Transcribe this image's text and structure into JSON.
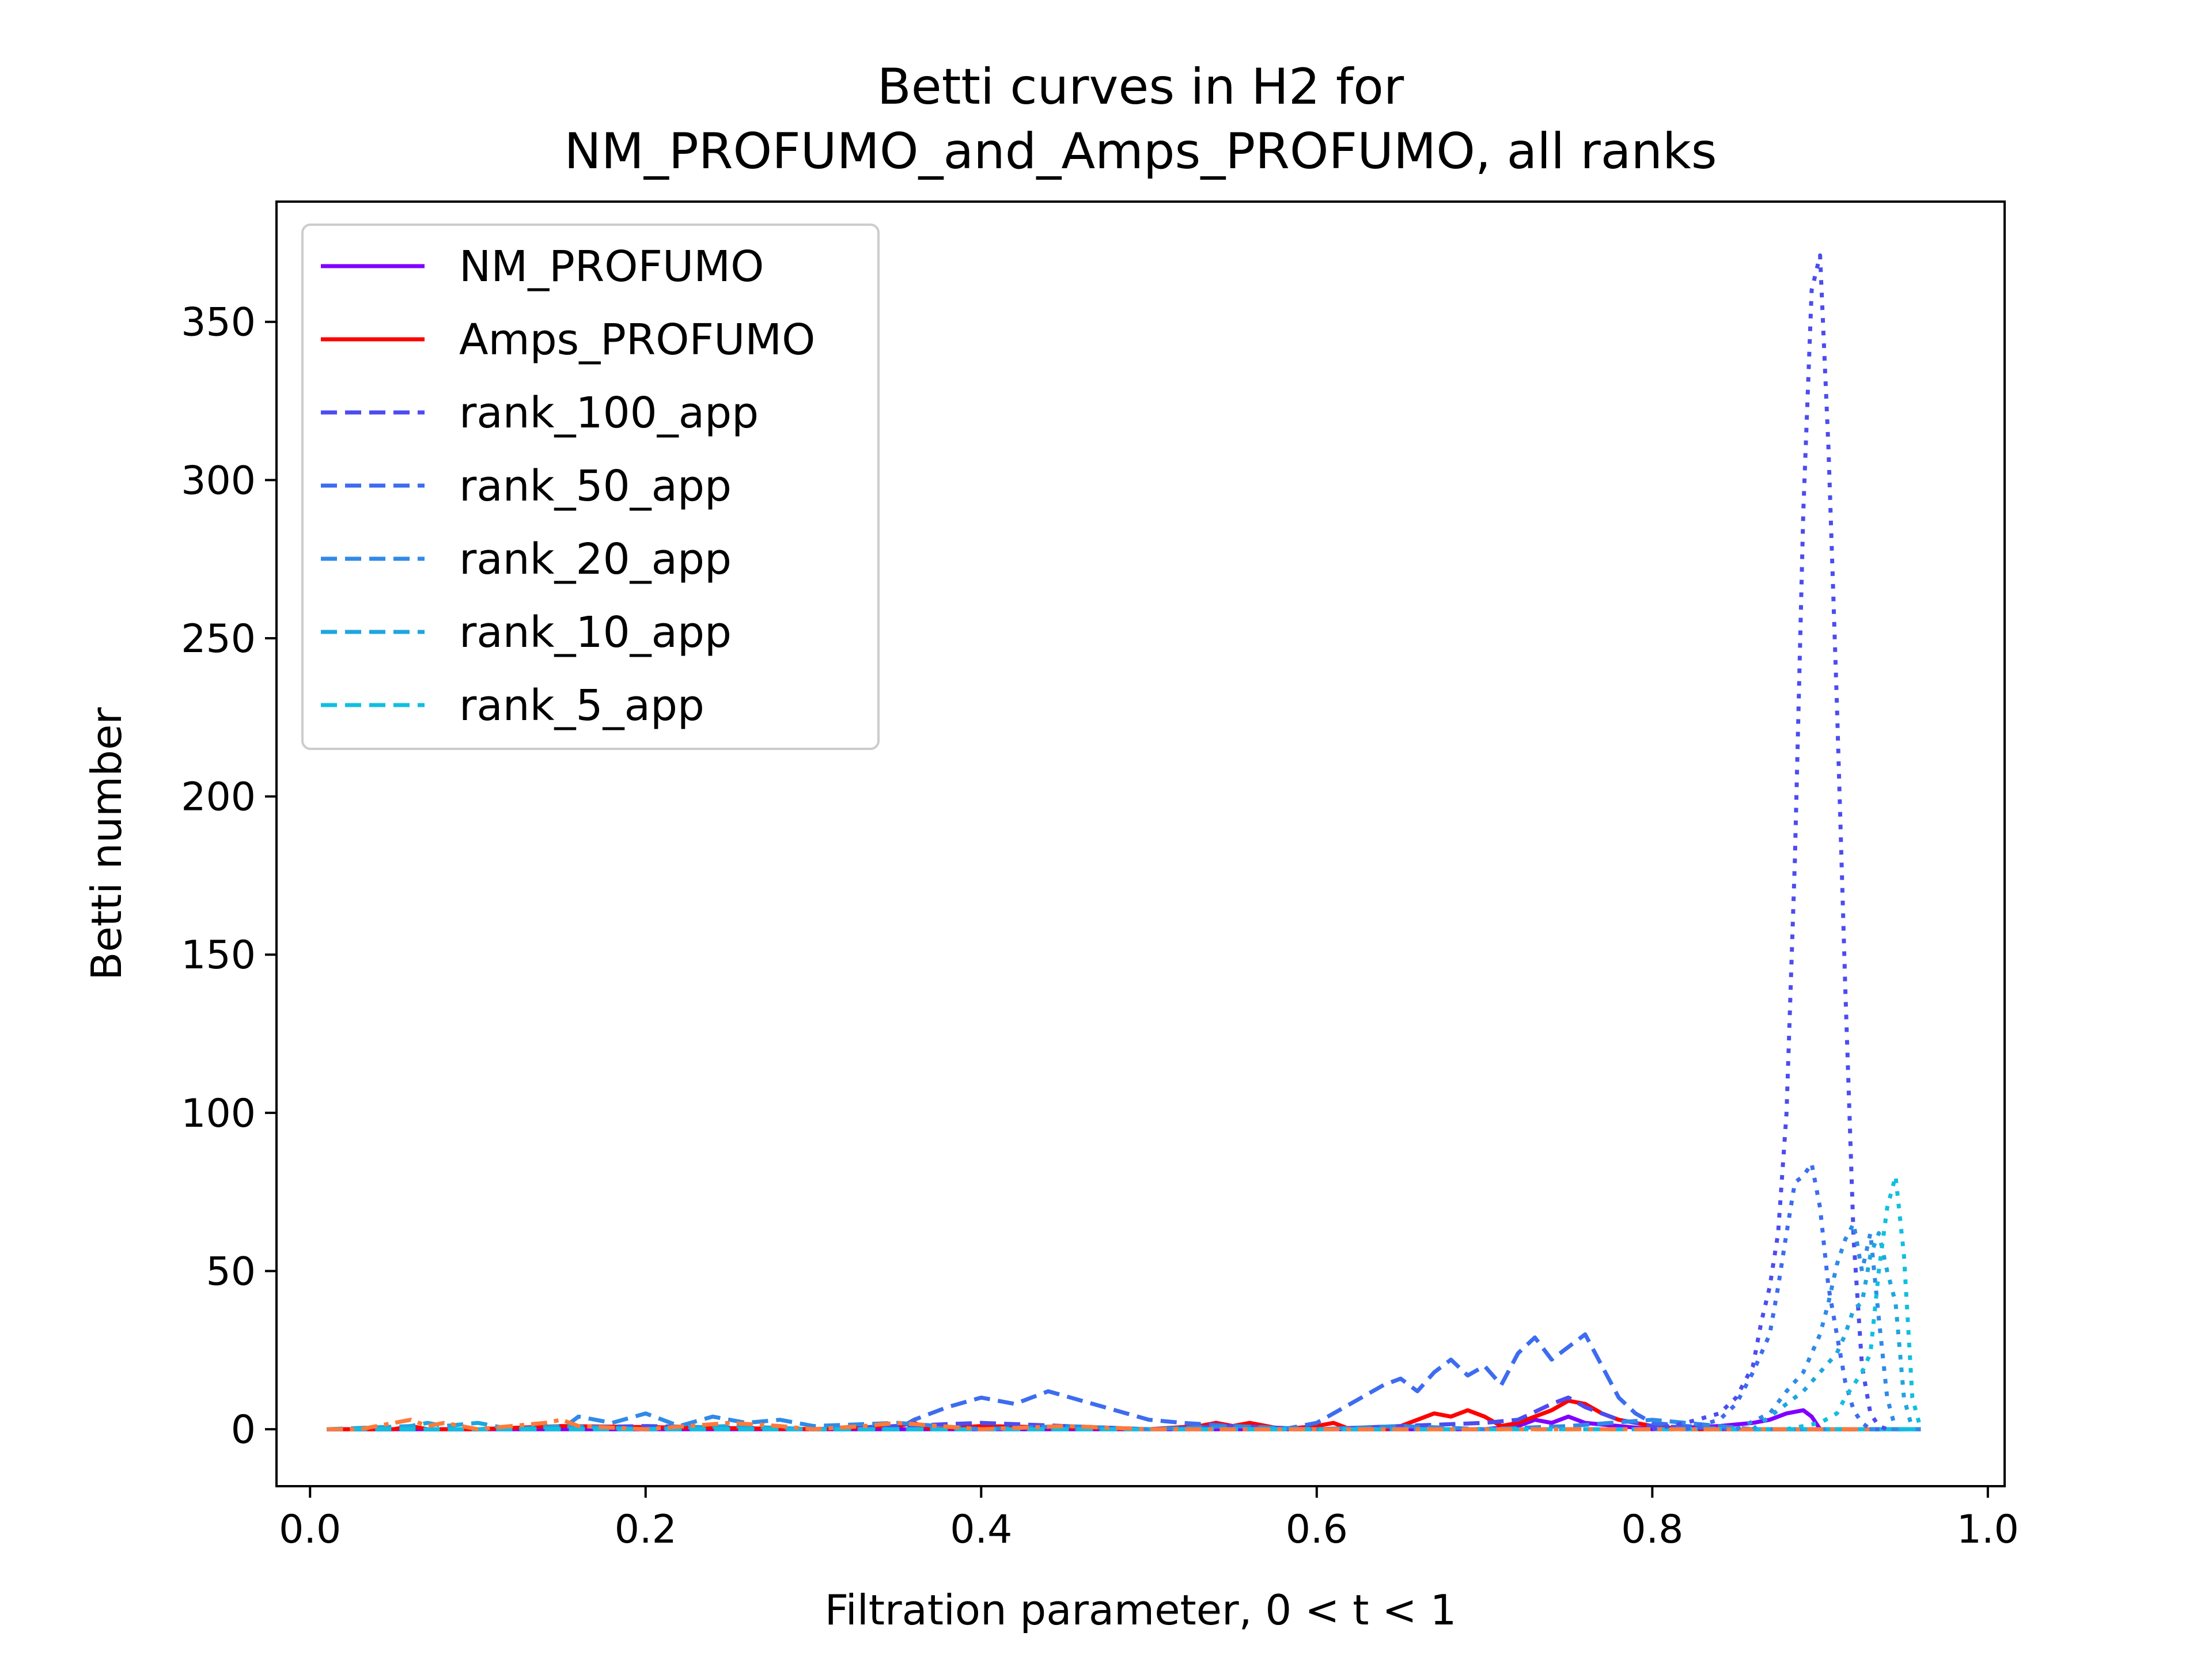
{
  "chart_data": {
    "type": "line",
    "title": "Betti curves in H2 for",
    "subtitle": "NM_PROFUMO_and_Amps_PROFUMO, all ranks",
    "xlabel": "Filtration parameter, 0 < t < 1",
    "ylabel": "Betti number",
    "xlim": [
      -0.02,
      1.01
    ],
    "ylim": [
      -18,
      388
    ],
    "xticks": [
      "0.0",
      "0.2",
      "0.4",
      "0.6",
      "0.8",
      "1.0"
    ],
    "xtick_values": [
      0.0,
      0.2,
      0.4,
      0.6,
      0.8,
      1.0
    ],
    "yticks": [
      "0",
      "50",
      "100",
      "150",
      "200",
      "250",
      "300",
      "350"
    ],
    "ytick_values": [
      0,
      50,
      100,
      150,
      200,
      250,
      300,
      350
    ],
    "grid": false,
    "legend_position": "upper-left",
    "series": [
      {
        "name": "NM_PROFUMO",
        "color": "#8000ff",
        "style": "solid",
        "in_legend": true,
        "x": [
          0.01,
          0.6,
          0.7,
          0.72,
          0.73,
          0.74,
          0.75,
          0.76,
          0.78,
          0.8,
          0.84,
          0.86,
          0.87,
          0.88,
          0.89,
          0.895,
          0.9
        ],
        "y": [
          0,
          0,
          0,
          1,
          3,
          2,
          4,
          2,
          1,
          0,
          1,
          2,
          3,
          5,
          6,
          4,
          0
        ]
      },
      {
        "name": "Amps_PROFUMO",
        "color": "#ff0000",
        "style": "solid",
        "in_legend": true,
        "x": [
          0.01,
          0.05,
          0.06,
          0.07,
          0.1,
          0.15,
          0.3,
          0.35,
          0.36,
          0.37,
          0.4,
          0.5,
          0.53,
          0.54,
          0.55,
          0.56,
          0.58,
          0.6,
          0.61,
          0.62,
          0.64,
          0.65,
          0.66,
          0.67,
          0.68,
          0.69,
          0.7,
          0.71,
          0.72,
          0.73,
          0.74,
          0.75,
          0.76,
          0.77,
          0.78,
          0.8,
          0.82,
          0.85,
          0.9,
          0.92
        ],
        "y": [
          0,
          0,
          1,
          0,
          0,
          1,
          0,
          1,
          2,
          0,
          1,
          0,
          1,
          2,
          1,
          2,
          0,
          1,
          2,
          0,
          0,
          1,
          3,
          5,
          4,
          6,
          4,
          1,
          2,
          4,
          6,
          9,
          8,
          5,
          3,
          1,
          0,
          0,
          0,
          0
        ]
      },
      {
        "name": "rank_100_app",
        "color": "#4c4cf0",
        "style": "dashed",
        "in_legend": true,
        "x": [
          0.01,
          0.1,
          0.2,
          0.3,
          0.35,
          0.4,
          0.45,
          0.5,
          0.55,
          0.6,
          0.65,
          0.7,
          0.72,
          0.74,
          0.75,
          0.76,
          0.78,
          0.8,
          0.85,
          0.9,
          0.96
        ],
        "y": [
          0,
          0,
          1,
          0,
          1,
          2,
          1,
          0,
          1,
          0,
          1,
          2,
          3,
          8,
          10,
          7,
          3,
          1,
          0,
          0,
          0
        ]
      },
      {
        "name": "rank_50_app",
        "color": "#3d6cf0",
        "style": "dashed",
        "in_legend": true,
        "x": [
          0.01,
          0.35,
          0.36,
          0.38,
          0.4,
          0.42,
          0.44,
          0.46,
          0.48,
          0.5,
          0.52,
          0.55,
          0.58,
          0.6,
          0.62,
          0.64,
          0.65,
          0.66,
          0.67,
          0.68,
          0.69,
          0.7,
          0.71,
          0.72,
          0.73,
          0.74,
          0.75,
          0.76,
          0.77,
          0.78,
          0.79,
          0.8,
          0.82,
          0.85,
          0.9,
          0.96
        ],
        "y": [
          0,
          0,
          3,
          7,
          10,
          8,
          12,
          9,
          6,
          3,
          2,
          1,
          0,
          2,
          8,
          14,
          16,
          12,
          18,
          22,
          17,
          20,
          14,
          24,
          29,
          22,
          26,
          30,
          20,
          10,
          5,
          2,
          1,
          0,
          0,
          0
        ]
      },
      {
        "name": "rank_20_app",
        "color": "#2f8ae8",
        "style": "dashed",
        "in_legend": true,
        "x": [
          0.01,
          0.15,
          0.16,
          0.18,
          0.2,
          0.22,
          0.24,
          0.26,
          0.28,
          0.3,
          0.35,
          0.4,
          0.45,
          0.5,
          0.55,
          0.6,
          0.65,
          0.7,
          0.75,
          0.8,
          0.82,
          0.84,
          0.86,
          0.88,
          0.9,
          0.96
        ],
        "y": [
          0,
          0,
          4,
          2,
          5,
          1,
          4,
          2,
          3,
          1,
          2,
          0,
          1,
          0,
          1,
          0,
          1,
          0,
          1,
          3,
          2,
          1,
          0,
          0,
          0,
          0
        ]
      },
      {
        "name": "rank_10_app",
        "color": "#1fa5e0",
        "style": "dashed",
        "in_legend": true,
        "x": [
          0.01,
          0.06,
          0.07,
          0.08,
          0.1,
          0.12,
          0.15,
          0.2,
          0.25,
          0.3,
          0.4,
          0.5,
          0.6,
          0.7,
          0.8,
          0.9,
          0.96
        ],
        "y": [
          0,
          1,
          2,
          1,
          2,
          0,
          1,
          0,
          1,
          0,
          0,
          0,
          0,
          0,
          0,
          0,
          0
        ]
      },
      {
        "name": "rank_5_app",
        "color": "#10bfe0",
        "style": "dashed",
        "in_legend": true,
        "x": [
          0.01,
          0.2,
          0.4,
          0.6,
          0.8,
          0.9,
          0.96
        ],
        "y": [
          0,
          0,
          0,
          0,
          0,
          0,
          0
        ]
      },
      {
        "name": "",
        "color": "#ff7a3a",
        "style": "dashdot",
        "in_legend": false,
        "x": [
          0.01,
          0.03,
          0.05,
          0.06,
          0.07,
          0.08,
          0.1,
          0.12,
          0.14,
          0.15,
          0.16,
          0.2,
          0.25,
          0.28,
          0.3,
          0.33,
          0.35,
          0.4,
          0.45,
          0.5,
          0.6,
          0.7,
          0.8,
          0.9,
          0.93
        ],
        "y": [
          0,
          0,
          2,
          3,
          1,
          2,
          0,
          1,
          2,
          3,
          1,
          0,
          2,
          1,
          0,
          1,
          2,
          0,
          1,
          0,
          0,
          0,
          0,
          0,
          0
        ]
      },
      {
        "name": "",
        "color": "#4c4cf0",
        "style": "dotted",
        "in_legend": false,
        "x": [
          0.8,
          0.82,
          0.84,
          0.85,
          0.86,
          0.865,
          0.87,
          0.875,
          0.88,
          0.885,
          0.89,
          0.895,
          0.9,
          0.905,
          0.91,
          0.915,
          0.92,
          0.925,
          0.93,
          0.935,
          0.94
        ],
        "y": [
          0,
          2,
          5,
          10,
          20,
          34,
          45,
          62,
          100,
          180,
          290,
          360,
          371,
          310,
          230,
          140,
          60,
          20,
          5,
          1,
          0
        ]
      },
      {
        "name": "",
        "color": "#3d6cf0",
        "style": "dotted",
        "in_legend": false,
        "x": [
          0.82,
          0.84,
          0.85,
          0.86,
          0.87,
          0.875,
          0.88,
          0.885,
          0.89,
          0.895,
          0.9,
          0.905,
          0.91,
          0.915,
          0.92,
          0.925,
          0.93,
          0.94
        ],
        "y": [
          0,
          3,
          8,
          18,
          30,
          45,
          62,
          78,
          80,
          84,
          70,
          45,
          30,
          15,
          6,
          2,
          0,
          0
        ]
      },
      {
        "name": "",
        "color": "#2f8ae8",
        "style": "dotted",
        "in_legend": false,
        "x": [
          0.85,
          0.87,
          0.88,
          0.89,
          0.9,
          0.905,
          0.91,
          0.915,
          0.92,
          0.925,
          0.93,
          0.935,
          0.94,
          0.945
        ],
        "y": [
          0,
          5,
          12,
          18,
          30,
          40,
          52,
          60,
          65,
          50,
          62,
          35,
          10,
          0
        ]
      },
      {
        "name": "",
        "color": "#1fa5e0",
        "style": "dotted",
        "in_legend": false,
        "x": [
          0.86,
          0.88,
          0.89,
          0.9,
          0.91,
          0.915,
          0.92,
          0.925,
          0.93,
          0.935,
          0.94,
          0.945,
          0.95,
          0.955
        ],
        "y": [
          0,
          8,
          12,
          18,
          24,
          30,
          38,
          40,
          55,
          62,
          50,
          40,
          10,
          0
        ]
      },
      {
        "name": "",
        "color": "#10bfe0",
        "style": "dotted",
        "in_legend": false,
        "x": [
          0.88,
          0.9,
          0.91,
          0.915,
          0.92,
          0.925,
          0.93,
          0.935,
          0.94,
          0.945,
          0.95,
          0.955,
          0.96
        ],
        "y": [
          0,
          2,
          5,
          10,
          14,
          18,
          24,
          50,
          70,
          80,
          55,
          10,
          0
        ]
      }
    ]
  }
}
